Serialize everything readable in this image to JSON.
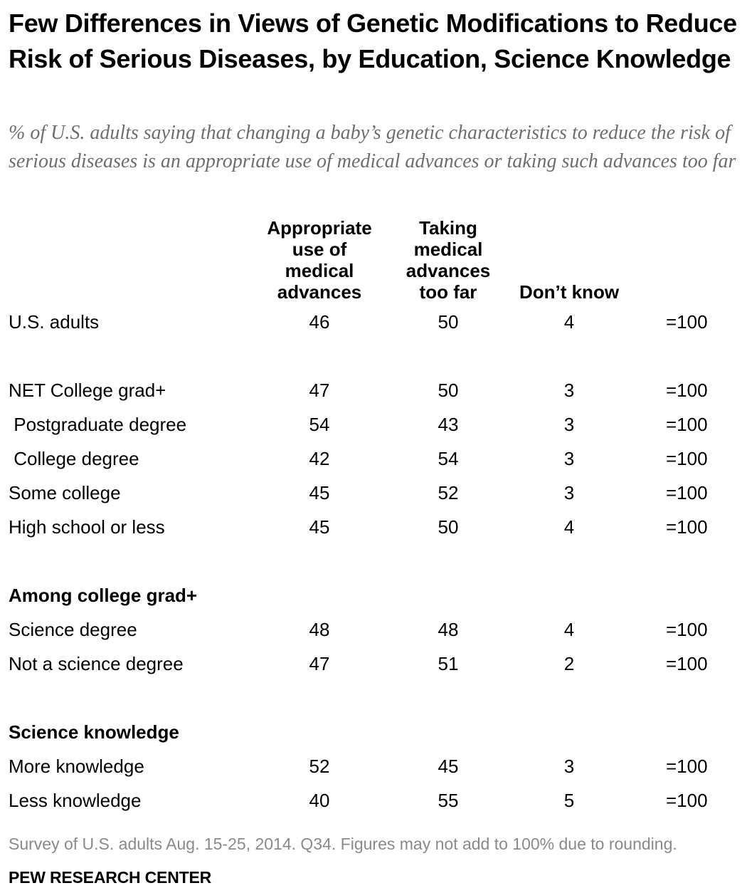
{
  "title": "Few Differences in Views of Genetic Modifications to Reduce Risk of Serious Diseases, by Education, Science Knowledge",
  "subtitle": "% of U.S. adults saying that changing a baby’s genetic characteristics to reduce the risk of serious diseases is an appropriate use of medical advances or taking such advances too far",
  "note": "Survey of U.S. adults Aug. 15-25, 2014. Q34. Figures may not add to 100% due to rounding.",
  "source": "PEW RESEARCH CENTER",
  "chart_data": {
    "type": "table",
    "columns": [
      "Appropriate\nuse of\nmedical\nadvances",
      "Taking\nmedical\nadvances\ntoo far",
      "Don’t know"
    ],
    "rows": [
      {
        "kind": "row",
        "label": "U.S. adults",
        "values": [
          46,
          50,
          4
        ],
        "total": "=100"
      },
      {
        "kind": "gap"
      },
      {
        "kind": "row",
        "label": "NET College grad+",
        "values": [
          47,
          50,
          3
        ],
        "total": "=100"
      },
      {
        "kind": "row",
        "label": " Postgraduate degree",
        "values": [
          54,
          43,
          3
        ],
        "total": "=100"
      },
      {
        "kind": "row",
        "label": " College degree",
        "values": [
          42,
          54,
          3
        ],
        "total": "=100"
      },
      {
        "kind": "row",
        "label": "Some college",
        "values": [
          45,
          52,
          3
        ],
        "total": "=100"
      },
      {
        "kind": "row",
        "label": "High school or less",
        "values": [
          45,
          50,
          4
        ],
        "total": "=100"
      },
      {
        "kind": "gap"
      },
      {
        "kind": "group",
        "label": "Among college grad+"
      },
      {
        "kind": "row",
        "label": "Science degree",
        "values": [
          48,
          48,
          4
        ],
        "total": "=100"
      },
      {
        "kind": "row",
        "label": "Not a science degree",
        "values": [
          47,
          51,
          2
        ],
        "total": "=100"
      },
      {
        "kind": "gap"
      },
      {
        "kind": "group",
        "label": "Science knowledge"
      },
      {
        "kind": "row",
        "label": "More knowledge",
        "values": [
          52,
          45,
          3
        ],
        "total": "=100"
      },
      {
        "kind": "row",
        "label": "Less knowledge",
        "values": [
          40,
          55,
          5
        ],
        "total": "=100"
      }
    ]
  }
}
